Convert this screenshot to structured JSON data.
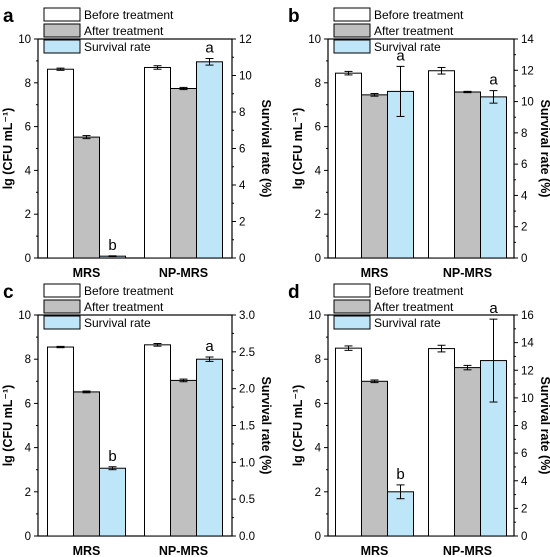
{
  "chart_data": [
    {
      "panel_label": "a",
      "type": "bar",
      "categories": [
        "MRS",
        "NP-MRS"
      ],
      "ylabel_left": "lg (CFU mL⁻¹)",
      "ylabel_right": "Survival rate (%)",
      "ylim_left": [
        0,
        10
      ],
      "yticks_left": [
        "0",
        "2",
        "4",
        "6",
        "8",
        "10"
      ],
      "ylim_right": [
        0,
        12
      ],
      "yticks_right": [
        "0",
        "2",
        "4",
        "6",
        "8",
        "10",
        "12"
      ],
      "grid": false,
      "legend_position": "top-left",
      "series": [
        {
          "name": "Before treatment",
          "axis": "left",
          "color": "#ffffff",
          "values": [
            8.62,
            8.7
          ],
          "errors": [
            0.05,
            0.08
          ]
        },
        {
          "name": "After treatment",
          "axis": "left",
          "color": "#c0c0c0",
          "values": [
            5.52,
            7.74
          ],
          "errors": [
            0.07,
            0.05
          ]
        },
        {
          "name": "Survival rate",
          "axis": "right",
          "color": "#bfe6f8",
          "values": [
            0.1,
            10.75
          ],
          "errors": [
            0.02,
            0.18
          ]
        }
      ],
      "annotations": [
        "b",
        "a"
      ]
    },
    {
      "panel_label": "b",
      "type": "bar",
      "categories": [
        "MRS",
        "NP-MRS"
      ],
      "ylabel_left": "lg (CFU mL⁻¹)",
      "ylabel_right": "Survival rate (%)",
      "ylim_left": [
        0,
        10
      ],
      "yticks_left": [
        "0",
        "2",
        "4",
        "6",
        "8",
        "10"
      ],
      "ylim_right": [
        0,
        14
      ],
      "yticks_right": [
        "0",
        "2",
        "4",
        "6",
        "8",
        "10",
        "12",
        "14"
      ],
      "grid": false,
      "legend_position": "top-left",
      "series": [
        {
          "name": "Before treatment",
          "axis": "left",
          "color": "#ffffff",
          "values": [
            8.44,
            8.55
          ],
          "errors": [
            0.08,
            0.15
          ]
        },
        {
          "name": "After treatment",
          "axis": "left",
          "color": "#c0c0c0",
          "values": [
            7.45,
            7.58
          ],
          "errors": [
            0.06,
            0.03
          ]
        },
        {
          "name": "Survival rate",
          "axis": "right",
          "color": "#bfe6f8",
          "values": [
            10.65,
            10.3
          ],
          "errors": [
            1.6,
            0.4
          ]
        }
      ],
      "annotations": [
        "a",
        "a"
      ]
    },
    {
      "panel_label": "c",
      "type": "bar",
      "categories": [
        "MRS",
        "NP-MRS"
      ],
      "ylabel_left": "lg (CFU mL⁻¹)",
      "ylabel_right": "Survival rate (%)",
      "ylim_left": [
        0,
        10
      ],
      "yticks_left": [
        "0",
        "2",
        "4",
        "6",
        "8",
        "10"
      ],
      "ylim_right": [
        0,
        3.0
      ],
      "yticks_right": [
        "0.0",
        "0.5",
        "1.0",
        "1.5",
        "2.0",
        "2.5",
        "3.0"
      ],
      "grid": false,
      "legend_position": "top-left",
      "series": [
        {
          "name": "Before treatment",
          "axis": "left",
          "color": "#ffffff",
          "values": [
            8.55,
            8.65
          ],
          "errors": [
            0.03,
            0.06
          ]
        },
        {
          "name": "After treatment",
          "axis": "left",
          "color": "#c0c0c0",
          "values": [
            6.52,
            7.04
          ],
          "errors": [
            0.04,
            0.06
          ]
        },
        {
          "name": "Survival rate",
          "axis": "right",
          "color": "#bfe6f8",
          "values": [
            0.92,
            2.4
          ],
          "errors": [
            0.02,
            0.03
          ]
        }
      ],
      "annotations": [
        "b",
        "a"
      ]
    },
    {
      "panel_label": "d",
      "type": "bar",
      "categories": [
        "MRS",
        "NP-MRS"
      ],
      "ylabel_left": "lg (CFU mL⁻¹)",
      "ylabel_right": "Survival rate (%)",
      "ylim_left": [
        0,
        10
      ],
      "yticks_left": [
        "0",
        "2",
        "4",
        "6",
        "8",
        "10"
      ],
      "ylim_right": [
        0,
        16
      ],
      "yticks_right": [
        "0",
        "2",
        "4",
        "6",
        "8",
        "10",
        "12",
        "14",
        "16"
      ],
      "grid": false,
      "legend_position": "top-left",
      "series": [
        {
          "name": "Before treatment",
          "axis": "left",
          "color": "#ffffff",
          "values": [
            8.5,
            8.48
          ],
          "errors": [
            0.1,
            0.15
          ]
        },
        {
          "name": "After treatment",
          "axis": "left",
          "color": "#c0c0c0",
          "values": [
            7.0,
            7.62
          ],
          "errors": [
            0.06,
            0.1
          ]
        },
        {
          "name": "Survival rate",
          "axis": "right",
          "color": "#bfe6f8",
          "values": [
            3.2,
            12.7
          ],
          "errors": [
            0.5,
            3.0
          ]
        }
      ],
      "annotations": [
        "b",
        "a"
      ]
    }
  ]
}
